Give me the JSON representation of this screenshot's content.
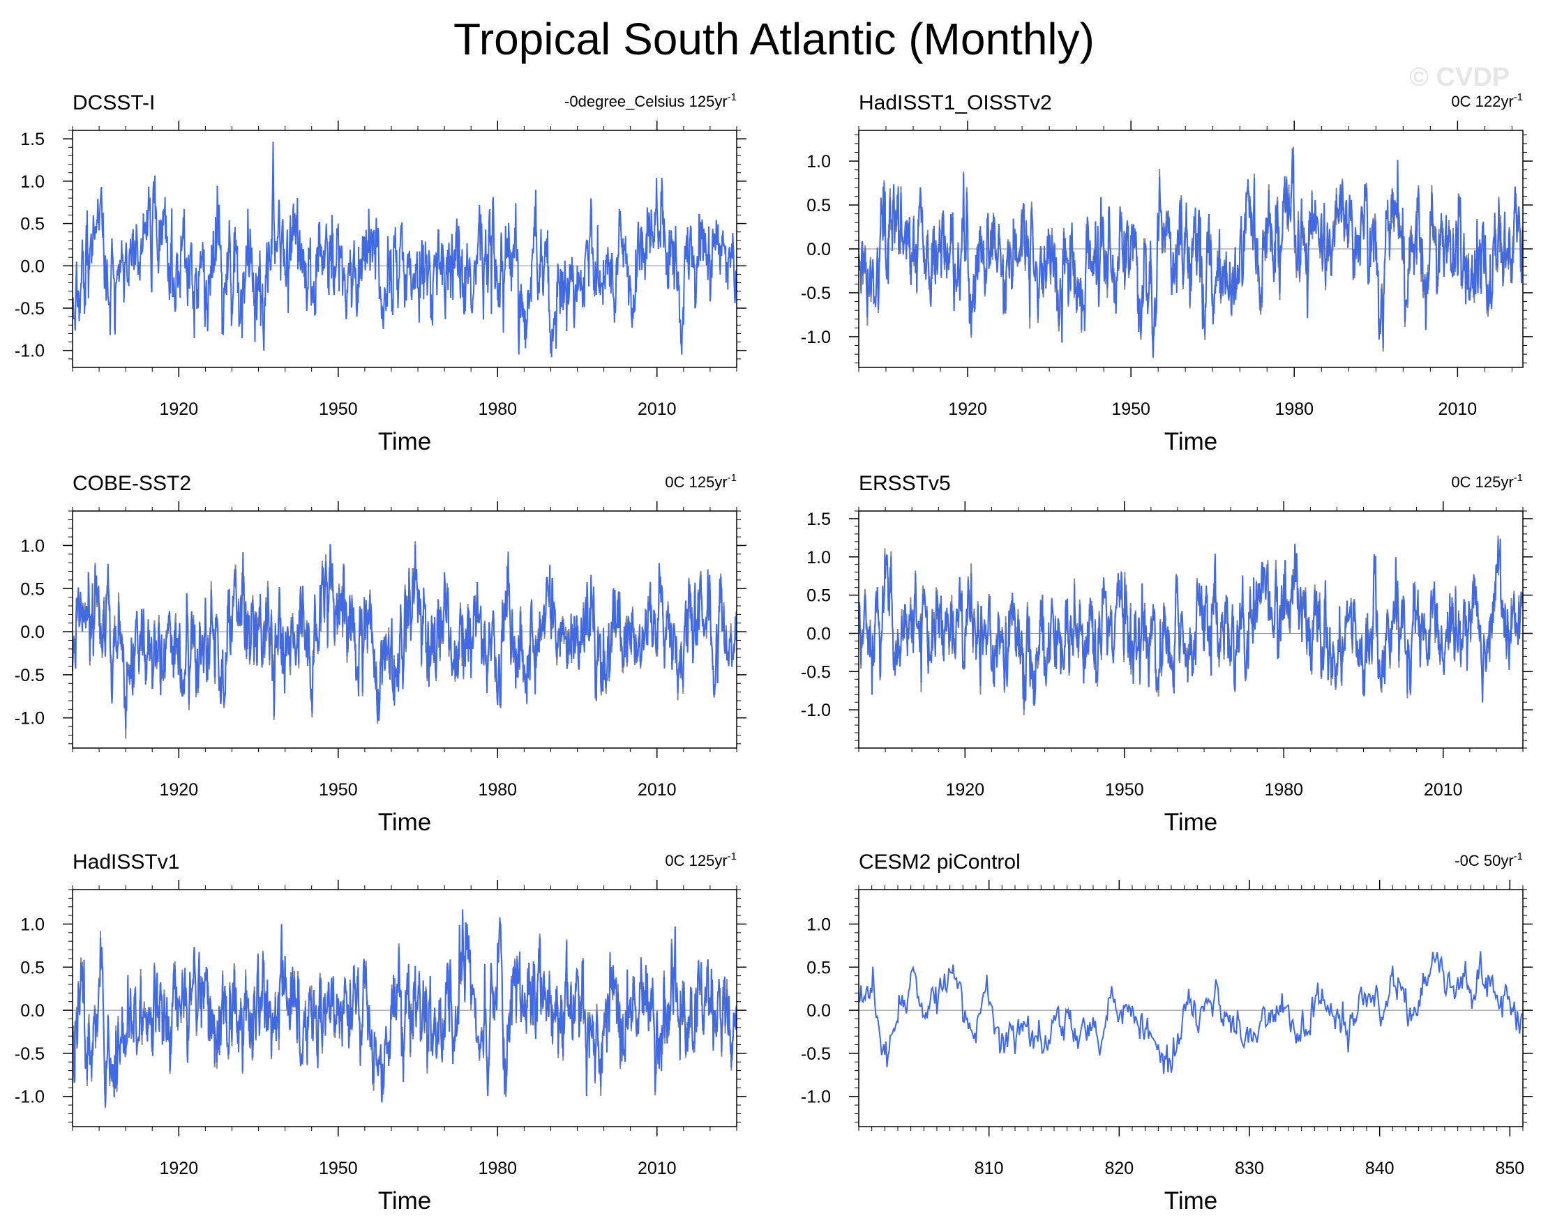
{
  "title": "Tropical South Atlantic (Monthly)",
  "watermark": "© CVDP",
  "colors": {
    "primary": "#4169e1",
    "reference": "#888888",
    "axis": "#000000",
    "zero_line": "#888888"
  },
  "chart_data": [
    {
      "type": "line",
      "title": "DCSST-I",
      "trend_value": "-0degree_Celsius",
      "trend_rate": "125yr",
      "trend_exp": "-1",
      "xlabel": "Time",
      "xlim": [
        1900,
        2025
      ],
      "xticks": [
        "1920",
        "1950",
        "1980",
        "2010"
      ],
      "xtick_values": [
        1920,
        1950,
        1980,
        2010
      ],
      "ylim": [
        -1.2,
        1.6
      ],
      "yticks": [
        "1.5",
        "1.0",
        "0.5",
        "0.0",
        "-0.5",
        "-1.0"
      ],
      "ytick_values": [
        1.5,
        1.0,
        0.5,
        0.0,
        -0.5,
        -1.0
      ],
      "reference_overlay": false,
      "seed": 11,
      "amplitude": 0.42,
      "smooth": 0.82,
      "noise": 0.16,
      "series": [
        {
          "name": "DCSST-I",
          "role": "primary"
        }
      ]
    },
    {
      "type": "line",
      "title": "HadISST1_OISSTv2",
      "trend_value": "0C",
      "trend_rate": "122yr",
      "trend_exp": "-1",
      "xlabel": "Time",
      "xlim": [
        1900,
        2022
      ],
      "xticks": [
        "1920",
        "1950",
        "1980",
        "2010"
      ],
      "xtick_values": [
        1920,
        1950,
        1980,
        2010
      ],
      "ylim": [
        -1.35,
        1.35
      ],
      "yticks": [
        "1.0",
        "0.5",
        "0.0",
        "-0.5",
        "-1.0"
      ],
      "ytick_values": [
        1.0,
        0.5,
        0.0,
        -0.5,
        -1.0
      ],
      "reference_overlay": true,
      "seed": 23,
      "amplitude": 0.42,
      "smooth": 0.82,
      "noise": 0.16,
      "series": [
        {
          "name": "HadISST1_OISSTv2",
          "role": "primary"
        },
        {
          "name": "reference",
          "role": "reference"
        }
      ]
    },
    {
      "type": "line",
      "title": "COBE-SST2",
      "trend_value": "0C",
      "trend_rate": "125yr",
      "trend_exp": "-1",
      "xlabel": "Time",
      "xlim": [
        1900,
        2025
      ],
      "xticks": [
        "1920",
        "1950",
        "1980",
        "2010"
      ],
      "xtick_values": [
        1920,
        1950,
        1980,
        2010
      ],
      "ylim": [
        -1.35,
        1.4
      ],
      "yticks": [
        "1.0",
        "0.5",
        "0.0",
        "-0.5",
        "-1.0"
      ],
      "ytick_values": [
        1.0,
        0.5,
        0.0,
        -0.5,
        -1.0
      ],
      "reference_overlay": true,
      "seed": 37,
      "amplitude": 0.42,
      "smooth": 0.82,
      "noise": 0.16,
      "series": [
        {
          "name": "COBE-SST2",
          "role": "primary"
        },
        {
          "name": "reference",
          "role": "reference"
        }
      ]
    },
    {
      "type": "line",
      "title": "ERSSTv5",
      "trend_value": "0C",
      "trend_rate": "125yr",
      "trend_exp": "-1",
      "xlabel": "Time",
      "xlim": [
        1900,
        2025
      ],
      "xticks": [
        "1920",
        "1950",
        "1980",
        "2010"
      ],
      "xtick_values": [
        1920,
        1950,
        1980,
        2010
      ],
      "ylim": [
        -1.5,
        1.6
      ],
      "yticks": [
        "1.5",
        "1.0",
        "0.5",
        "0.0",
        "-0.5",
        "-1.0"
      ],
      "ytick_values": [
        1.5,
        1.0,
        0.5,
        0.0,
        -0.5,
        -1.0
      ],
      "reference_overlay": true,
      "seed": 51,
      "amplitude": 0.42,
      "smooth": 0.82,
      "noise": 0.16,
      "series": [
        {
          "name": "ERSSTv5",
          "role": "primary"
        },
        {
          "name": "reference",
          "role": "reference"
        }
      ]
    },
    {
      "type": "line",
      "title": "HadISSTv1",
      "trend_value": "0C",
      "trend_rate": "125yr",
      "trend_exp": "-1",
      "xlabel": "Time",
      "xlim": [
        1900,
        2025
      ],
      "xticks": [
        "1920",
        "1950",
        "1980",
        "2010"
      ],
      "xtick_values": [
        1920,
        1950,
        1980,
        2010
      ],
      "ylim": [
        -1.35,
        1.4
      ],
      "yticks": [
        "1.0",
        "0.5",
        "0.0",
        "-0.5",
        "-1.0"
      ],
      "ytick_values": [
        1.0,
        0.5,
        0.0,
        -0.5,
        -1.0
      ],
      "reference_overlay": true,
      "seed": 67,
      "amplitude": 0.42,
      "smooth": 0.82,
      "noise": 0.16,
      "series": [
        {
          "name": "HadISSTv1",
          "role": "primary"
        },
        {
          "name": "reference",
          "role": "reference"
        }
      ]
    },
    {
      "type": "line",
      "title": "CESM2 piControl",
      "trend_value": "-0C",
      "trend_rate": "50yr",
      "trend_exp": "-1",
      "xlabel": "Time",
      "xlim": [
        800,
        851
      ],
      "xticks": [
        "810",
        "820",
        "830",
        "840",
        "850"
      ],
      "xtick_values": [
        810,
        820,
        830,
        840,
        850
      ],
      "ylim": [
        -1.35,
        1.4
      ],
      "yticks": [
        "1.0",
        "0.5",
        "0.0",
        "-0.5",
        "-1.0"
      ],
      "ytick_values": [
        1.0,
        0.5,
        0.0,
        -0.5,
        -1.0
      ],
      "reference_overlay": false,
      "seed": 83,
      "amplitude": 0.38,
      "smooth": 0.9,
      "noise": 0.08,
      "series": [
        {
          "name": "CESM2 piControl",
          "role": "primary"
        }
      ]
    }
  ]
}
